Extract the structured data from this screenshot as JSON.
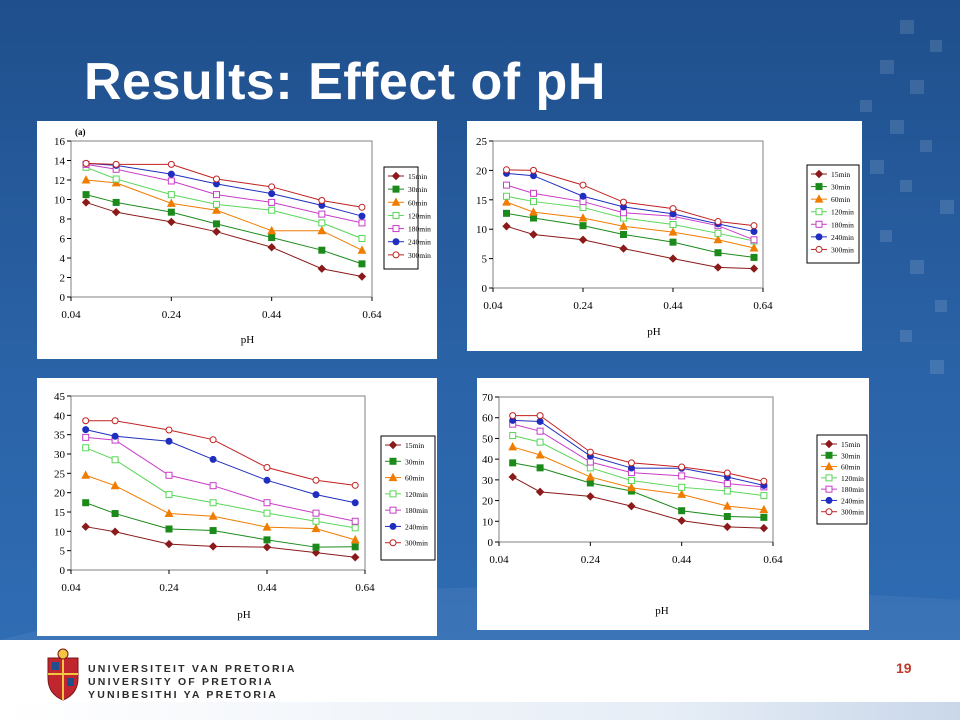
{
  "slide": {
    "title": "Results: Effect of pH",
    "page_number": "19",
    "university": {
      "line1": "UNIVERSITEIT VAN PRETORIA",
      "line2": "UNIVERSITY OF PRETORIA",
      "line3": "YUNIBESITHI YA PRETORIA"
    },
    "colors": {
      "background": "#2a62a6",
      "title": "#ffffff",
      "page_number": "#c0392b"
    }
  },
  "chart_data": [
    {
      "type": "line",
      "title": "",
      "panel_label": "(a)",
      "xlabel": "pH",
      "ylabel": "",
      "xlim": [
        0.04,
        0.64
      ],
      "ylim": [
        0,
        16
      ],
      "xticks": [
        0.04,
        0.24,
        0.44,
        0.64
      ],
      "yticks": [
        0,
        2,
        4,
        6,
        8,
        10,
        12,
        14,
        16
      ],
      "grid": false,
      "legend": "right",
      "x": [
        0.07,
        0.13,
        0.24,
        0.33,
        0.44,
        0.54,
        0.62
      ],
      "series": [
        {
          "name": "15min",
          "values": [
            9.7,
            8.7,
            7.7,
            6.7,
            5.1,
            2.9,
            2.1
          ]
        },
        {
          "name": "30min",
          "values": [
            10.5,
            9.7,
            8.7,
            7.5,
            6.1,
            4.8,
            3.4
          ]
        },
        {
          "name": "60min",
          "values": [
            12.0,
            11.7,
            9.6,
            8.9,
            6.8,
            6.8,
            4.8
          ]
        },
        {
          "name": "120min",
          "values": [
            13.3,
            12.1,
            10.5,
            9.5,
            8.9,
            7.6,
            6.0
          ]
        },
        {
          "name": "180min",
          "values": [
            13.6,
            13.1,
            11.9,
            10.5,
            9.7,
            8.5,
            7.6
          ]
        },
        {
          "name": "240min",
          "values": [
            13.7,
            13.5,
            12.6,
            11.6,
            10.6,
            9.4,
            8.3
          ]
        },
        {
          "name": "300min",
          "values": [
            13.7,
            13.6,
            13.6,
            12.1,
            11.3,
            9.9,
            9.2
          ]
        }
      ]
    },
    {
      "type": "line",
      "title": "",
      "xlabel": "pH",
      "ylabel": "",
      "xlim": [
        0.04,
        0.64
      ],
      "ylim": [
        0,
        25
      ],
      "xticks": [
        0.04,
        0.24,
        0.44,
        0.64
      ],
      "yticks": [
        0,
        5,
        10,
        15,
        20,
        25
      ],
      "grid": false,
      "legend": "right",
      "x": [
        0.07,
        0.13,
        0.24,
        0.33,
        0.44,
        0.54,
        0.62
      ],
      "series": [
        {
          "name": "15min",
          "values": [
            10.5,
            9.1,
            8.2,
            6.7,
            5.0,
            3.5,
            3.3
          ]
        },
        {
          "name": "30min",
          "values": [
            12.7,
            11.9,
            10.6,
            9.1,
            7.8,
            6.0,
            5.2
          ]
        },
        {
          "name": "60min",
          "values": [
            14.6,
            12.9,
            11.9,
            10.5,
            9.5,
            8.2,
            6.8
          ]
        },
        {
          "name": "120min",
          "values": [
            15.6,
            14.7,
            13.7,
            11.9,
            10.8,
            9.3,
            8.0
          ]
        },
        {
          "name": "180min",
          "values": [
            17.5,
            16.1,
            14.7,
            12.8,
            12.2,
            10.6,
            8.2
          ]
        },
        {
          "name": "240min",
          "values": [
            19.5,
            19.1,
            15.6,
            13.8,
            12.6,
            10.9,
            9.6
          ]
        },
        {
          "name": "300min",
          "values": [
            20.1,
            20.0,
            17.5,
            14.6,
            13.5,
            11.3,
            10.6
          ]
        }
      ]
    },
    {
      "type": "line",
      "title": "",
      "xlabel": "pH",
      "ylabel": "",
      "xlim": [
        0.04,
        0.64
      ],
      "ylim": [
        0,
        45
      ],
      "xticks": [
        0.04,
        0.24,
        0.44,
        0.64
      ],
      "yticks": [
        0,
        5,
        10,
        15,
        20,
        25,
        30,
        35,
        40,
        45
      ],
      "grid": false,
      "legend": "right",
      "x": [
        0.07,
        0.13,
        0.24,
        0.33,
        0.44,
        0.54,
        0.62
      ],
      "series": [
        {
          "name": "15min",
          "values": [
            11.2,
            9.9,
            6.7,
            6.1,
            5.9,
            4.5,
            3.3
          ]
        },
        {
          "name": "30min",
          "values": [
            17.4,
            14.6,
            10.6,
            10.2,
            7.8,
            5.9,
            6.0
          ]
        },
        {
          "name": "60min",
          "values": [
            24.5,
            21.8,
            14.6,
            13.9,
            11.1,
            10.7,
            7.8
          ]
        },
        {
          "name": "120min",
          "values": [
            31.6,
            28.5,
            19.5,
            17.4,
            14.7,
            12.6,
            10.9
          ]
        },
        {
          "name": "180min",
          "values": [
            34.3,
            33.6,
            24.5,
            21.8,
            17.4,
            14.7,
            12.6
          ]
        },
        {
          "name": "240min",
          "values": [
            36.3,
            34.6,
            33.3,
            28.6,
            23.2,
            19.5,
            17.4
          ]
        },
        {
          "name": "300min",
          "values": [
            38.6,
            38.6,
            36.2,
            33.7,
            26.5,
            23.2,
            21.9
          ]
        }
      ]
    },
    {
      "type": "line",
      "title": "",
      "xlabel": "pH",
      "ylabel": "",
      "xlim": [
        0.04,
        0.64
      ],
      "ylim": [
        0,
        70
      ],
      "xticks": [
        0.04,
        0.24,
        0.44,
        0.64
      ],
      "yticks": [
        0,
        10,
        20,
        30,
        40,
        50,
        60,
        70
      ],
      "grid": false,
      "legend": "right",
      "x": [
        0.07,
        0.13,
        0.24,
        0.33,
        0.44,
        0.54,
        0.62
      ],
      "series": [
        {
          "name": "15min",
          "values": [
            31.4,
            24.2,
            22.0,
            17.3,
            10.3,
            7.3,
            6.7
          ]
        },
        {
          "name": "30min",
          "values": [
            38.2,
            35.8,
            28.5,
            24.6,
            15.1,
            12.3,
            11.9
          ]
        },
        {
          "name": "60min",
          "values": [
            45.9,
            42.0,
            31.4,
            26.2,
            23.0,
            17.3,
            15.6
          ]
        },
        {
          "name": "120min",
          "values": [
            51.4,
            48.2,
            35.8,
            29.7,
            26.4,
            24.6,
            22.4
          ]
        },
        {
          "name": "180min",
          "values": [
            56.9,
            53.5,
            38.6,
            33.5,
            31.9,
            28.2,
            26.6
          ]
        },
        {
          "name": "240min",
          "values": [
            58.7,
            58.2,
            41.5,
            35.7,
            35.6,
            31.4,
            27.3
          ]
        },
        {
          "name": "300min",
          "values": [
            61.0,
            61.0,
            43.4,
            38.2,
            36.2,
            33.3,
            29.3
          ]
        }
      ]
    }
  ],
  "series_styles": [
    {
      "color": "#8b1a1a",
      "marker": "diamond",
      "filled": true
    },
    {
      "color": "#1b8a1b",
      "marker": "square",
      "filled": true
    },
    {
      "color": "#f07c00",
      "marker": "triangle",
      "filled": true
    },
    {
      "color": "#5ad65a",
      "marker": "square",
      "filled": false
    },
    {
      "color": "#c83cc8",
      "marker": "square",
      "filled": false
    },
    {
      "color": "#1f2ebf",
      "marker": "circle",
      "filled": true
    },
    {
      "color": "#c0201f",
      "marker": "circle",
      "filled": false
    }
  ]
}
